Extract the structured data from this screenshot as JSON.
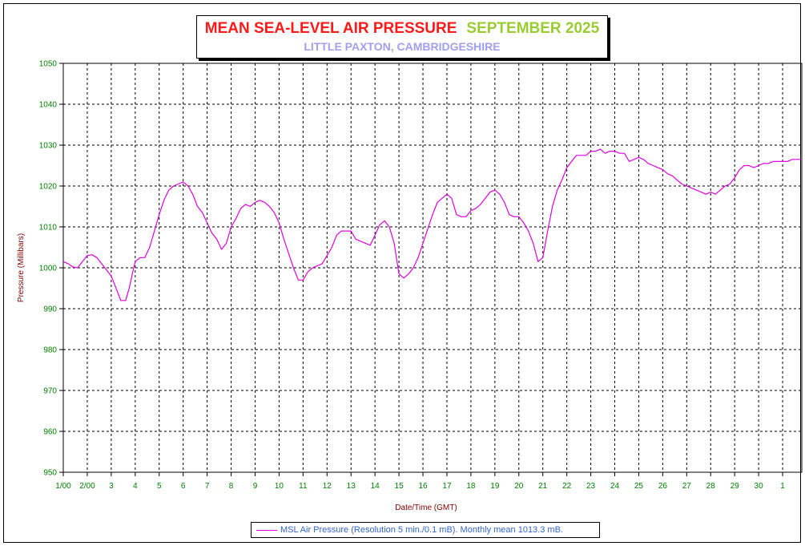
{
  "chart_data": {
    "type": "line",
    "title_main": "MEAN SEA-LEVEL AIR PRESSURE",
    "title_month": "SEPTEMBER 2025",
    "subtitle": "LITTLE PAXTON, CAMBRIDGESHIRE",
    "xlabel": "Date/Time (GMT)",
    "ylabel": "Pressure (Millibars)",
    "ylim": [
      950,
      1050
    ],
    "yticks": [
      1050,
      1040,
      1030,
      1020,
      1010,
      1000,
      990,
      980,
      970,
      960,
      950
    ],
    "xlim_days": [
      1,
      31.8
    ],
    "xtick_labels": [
      "1/00",
      "2/00",
      "3",
      "4",
      "5",
      "6",
      "7",
      "8",
      "9",
      "10",
      "11",
      "12",
      "13",
      "14",
      "15",
      "16",
      "17",
      "18",
      "19",
      "20",
      "21",
      "22",
      "23",
      "24",
      "25",
      "26",
      "27",
      "28",
      "29",
      "30",
      "1"
    ],
    "grid": true,
    "legend_position": "bottom-center",
    "series": [
      {
        "name": "MSL Air Pressure (Resolution 5 min./0.1 mB). Monthly mean 1013.3 mB.",
        "color": "#e000e0",
        "points": [
          [
            1.0,
            1001.5
          ],
          [
            1.2,
            1001.0
          ],
          [
            1.4,
            1000.2
          ],
          [
            1.6,
            1000.0
          ],
          [
            1.8,
            1001.5
          ],
          [
            2.0,
            1003.0
          ],
          [
            2.2,
            1003.2
          ],
          [
            2.4,
            1002.5
          ],
          [
            2.6,
            1001.0
          ],
          [
            2.8,
            999.5
          ],
          [
            3.0,
            998.0
          ],
          [
            3.2,
            995.0
          ],
          [
            3.4,
            992.0
          ],
          [
            3.6,
            992.0
          ],
          [
            3.75,
            995.0
          ],
          [
            3.9,
            999.0
          ],
          [
            4.0,
            1001.5
          ],
          [
            4.2,
            1002.5
          ],
          [
            4.4,
            1002.5
          ],
          [
            4.6,
            1005.0
          ],
          [
            4.8,
            1009.0
          ],
          [
            5.0,
            1013.0
          ],
          [
            5.2,
            1016.5
          ],
          [
            5.4,
            1019.0
          ],
          [
            5.6,
            1020.0
          ],
          [
            5.8,
            1020.5
          ],
          [
            6.0,
            1021.0
          ],
          [
            6.2,
            1020.0
          ],
          [
            6.4,
            1018.0
          ],
          [
            6.6,
            1015.0
          ],
          [
            6.8,
            1013.5
          ],
          [
            7.0,
            1011.0
          ],
          [
            7.2,
            1008.5
          ],
          [
            7.4,
            1007.0
          ],
          [
            7.6,
            1004.5
          ],
          [
            7.8,
            1006.0
          ],
          [
            8.0,
            1010.0
          ],
          [
            8.2,
            1012.0
          ],
          [
            8.4,
            1014.5
          ],
          [
            8.6,
            1015.5
          ],
          [
            8.8,
            1015.0
          ],
          [
            9.0,
            1016.0
          ],
          [
            9.2,
            1016.5
          ],
          [
            9.4,
            1016.0
          ],
          [
            9.6,
            1015.0
          ],
          [
            9.8,
            1013.5
          ],
          [
            10.0,
            1011.0
          ],
          [
            10.2,
            1007.0
          ],
          [
            10.4,
            1003.5
          ],
          [
            10.6,
            1000.0
          ],
          [
            10.8,
            997.0
          ],
          [
            11.0,
            997.0
          ],
          [
            11.2,
            999.0
          ],
          [
            11.4,
            1000.0
          ],
          [
            11.6,
            1000.5
          ],
          [
            11.8,
            1001.0
          ],
          [
            12.0,
            1003.0
          ],
          [
            12.2,
            1005.0
          ],
          [
            12.4,
            1008.0
          ],
          [
            12.6,
            1009.0
          ],
          [
            12.8,
            1009.0
          ],
          [
            13.0,
            1009.0
          ],
          [
            13.2,
            1007.0
          ],
          [
            13.4,
            1006.5
          ],
          [
            13.6,
            1006.0
          ],
          [
            13.8,
            1005.5
          ],
          [
            14.0,
            1008.0
          ],
          [
            14.2,
            1010.5
          ],
          [
            14.4,
            1011.5
          ],
          [
            14.6,
            1010.0
          ],
          [
            14.8,
            1006.0
          ],
          [
            15.0,
            998.5
          ],
          [
            15.2,
            997.5
          ],
          [
            15.4,
            998.5
          ],
          [
            15.6,
            1000.0
          ],
          [
            15.8,
            1002.5
          ],
          [
            16.0,
            1006.0
          ],
          [
            16.2,
            1009.5
          ],
          [
            16.4,
            1013.0
          ],
          [
            16.6,
            1016.0
          ],
          [
            16.8,
            1017.0
          ],
          [
            17.0,
            1018.0
          ],
          [
            17.2,
            1017.0
          ],
          [
            17.4,
            1013.0
          ],
          [
            17.6,
            1012.5
          ],
          [
            17.8,
            1012.5
          ],
          [
            18.0,
            1014.0
          ],
          [
            18.2,
            1014.5
          ],
          [
            18.4,
            1015.5
          ],
          [
            18.6,
            1017.0
          ],
          [
            18.8,
            1018.5
          ],
          [
            19.0,
            1019.0
          ],
          [
            19.2,
            1018.0
          ],
          [
            19.4,
            1016.0
          ],
          [
            19.6,
            1013.0
          ],
          [
            19.8,
            1012.5
          ],
          [
            20.0,
            1012.5
          ],
          [
            20.2,
            1011.0
          ],
          [
            20.4,
            1009.0
          ],
          [
            20.6,
            1006.0
          ],
          [
            20.8,
            1001.5
          ],
          [
            21.0,
            1002.5
          ],
          [
            21.2,
            1009.0
          ],
          [
            21.4,
            1015.0
          ],
          [
            21.6,
            1019.0
          ],
          [
            21.8,
            1021.5
          ],
          [
            22.0,
            1024.5
          ],
          [
            22.2,
            1026.0
          ],
          [
            22.4,
            1027.5
          ],
          [
            22.6,
            1027.5
          ],
          [
            22.8,
            1027.5
          ],
          [
            23.0,
            1028.5
          ],
          [
            23.2,
            1028.5
          ],
          [
            23.4,
            1029.0
          ],
          [
            23.6,
            1028.0
          ],
          [
            23.8,
            1028.5
          ],
          [
            24.0,
            1028.5
          ],
          [
            24.2,
            1028.0
          ],
          [
            24.4,
            1028.0
          ],
          [
            24.6,
            1026.0
          ],
          [
            24.8,
            1026.5
          ],
          [
            25.0,
            1027.0
          ],
          [
            25.2,
            1026.5
          ],
          [
            25.4,
            1025.5
          ],
          [
            25.6,
            1025.0
          ],
          [
            25.8,
            1024.5
          ],
          [
            26.0,
            1024.0
          ],
          [
            26.2,
            1023.0
          ],
          [
            26.4,
            1022.5
          ],
          [
            26.6,
            1021.5
          ],
          [
            26.8,
            1020.5
          ],
          [
            27.0,
            1020.0
          ],
          [
            27.2,
            1019.5
          ],
          [
            27.4,
            1019.0
          ],
          [
            27.6,
            1018.5
          ],
          [
            27.8,
            1018.0
          ],
          [
            28.0,
            1018.5
          ],
          [
            28.2,
            1018.0
          ],
          [
            28.4,
            1019.0
          ],
          [
            28.6,
            1020.0
          ],
          [
            28.8,
            1020.5
          ],
          [
            29.0,
            1022.0
          ],
          [
            29.2,
            1024.0
          ],
          [
            29.4,
            1025.0
          ],
          [
            29.6,
            1025.0
          ],
          [
            29.8,
            1024.5
          ],
          [
            30.0,
            1025.0
          ],
          [
            30.2,
            1025.5
          ],
          [
            30.4,
            1025.5
          ],
          [
            30.6,
            1026.0
          ],
          [
            30.8,
            1026.0
          ],
          [
            31.0,
            1026.0
          ],
          [
            31.2,
            1026.0
          ],
          [
            31.4,
            1026.5
          ],
          [
            31.6,
            1026.5
          ],
          [
            31.75,
            1026.5
          ]
        ]
      }
    ]
  }
}
